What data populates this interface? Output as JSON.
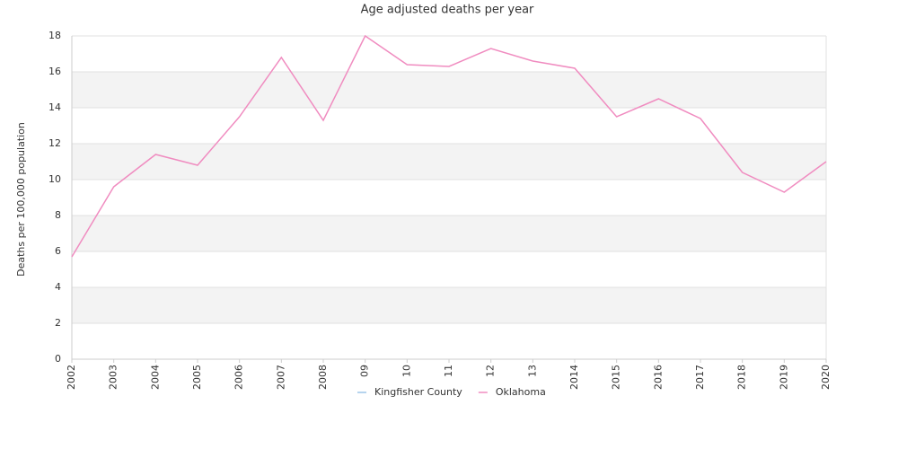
{
  "chart_data": {
    "type": "line",
    "title": "Age adjusted deaths per year",
    "ylabel": "Deaths per 100,000 population",
    "categories": [
      "2002",
      "2003",
      "2004",
      "2005",
      "2006",
      "2007",
      "2008",
      "09",
      "10",
      "11",
      "12",
      "13",
      "2014",
      "2015",
      "2016",
      "2017",
      "2018",
      "2019",
      "2020"
    ],
    "series": [
      {
        "name": "Kingfisher County",
        "color": "#9ec5e8",
        "values": [
          null,
          null,
          null,
          null,
          null,
          null,
          null,
          null,
          null,
          null,
          null,
          null,
          null,
          null,
          null,
          null,
          null,
          null,
          null
        ]
      },
      {
        "name": "Oklahoma",
        "color": "#f08cc0",
        "values": [
          5.7,
          9.6,
          11.4,
          10.8,
          13.5,
          16.8,
          13.3,
          18.0,
          16.4,
          16.3,
          17.3,
          16.6,
          16.2,
          13.5,
          14.5,
          13.4,
          10.4,
          9.3,
          11.0
        ]
      }
    ],
    "ylim": [
      0,
      18
    ],
    "yticks": [
      0,
      2,
      4,
      6,
      8,
      10,
      12,
      14,
      16,
      18
    ],
    "grid": true,
    "legend": "bottom"
  }
}
